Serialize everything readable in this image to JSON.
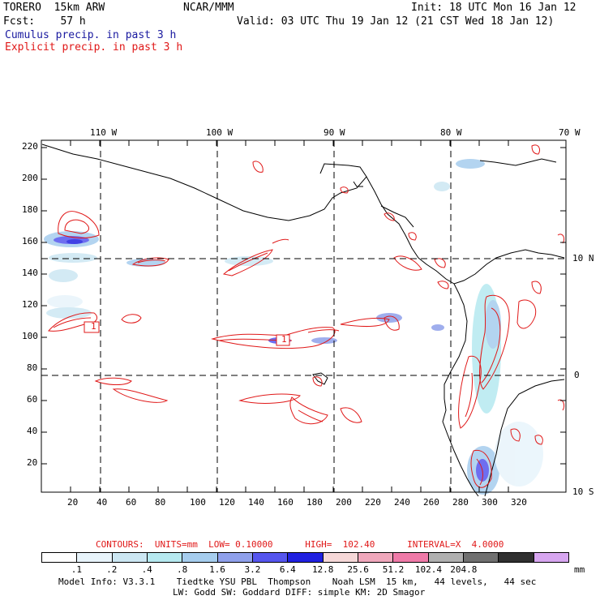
{
  "header": {
    "model": "TORERO  15km ARW",
    "org": "NCAR/MMM",
    "init": "Init: 18 UTC Mon 16 Jan 12",
    "fcst": "Fcst:    57 h",
    "valid": "Valid: 03 UTC Thu 19 Jan 12 (21 CST Wed 18 Jan 12)",
    "field_cumulus": "Cumulus precip. in past 3 h",
    "field_explicit": "Explicit precip. in past 3 h"
  },
  "colors": {
    "cumulus_text": "#1a1aa0",
    "explicit_text": "#e01818",
    "contour": "#e01818",
    "coast": "#000000"
  },
  "map": {
    "lon_labels": [
      "110 W",
      "100 W",
      "90 W",
      "80 W",
      "70 W"
    ],
    "lat_labels": [
      "10 N",
      "0",
      "10 S"
    ],
    "y_ticks": [
      "220",
      "200",
      "180",
      "160",
      "140",
      "120",
      "100",
      "80",
      "60",
      "40",
      "20"
    ],
    "x_ticks": [
      "20",
      "40",
      "60",
      "80",
      "100",
      "120",
      "140",
      "160",
      "180",
      "200",
      "220",
      "240",
      "260",
      "280",
      "300",
      "320"
    ],
    "contour_labels": [
      "1",
      "1"
    ]
  },
  "footer": {
    "contours_info": "CONTOURS:  UNITS=mm  LOW= 0.10000      HIGH=  102.40      INTERVAL=X  4.0000",
    "colorbar": {
      "colors": [
        "#ffffff",
        "#e8f4fb",
        "#cce7f3",
        "#b6e9f0",
        "#a6cdee",
        "#8fa0eb",
        "#5555ee",
        "#2020e0",
        "#f6d8d8",
        "#f0a8bc",
        "#ef7aa8",
        "#b0b0b0",
        "#707070",
        "#303030",
        "#d7a6f0"
      ],
      "labels": [
        ".1",
        ".2",
        ".4",
        ".8",
        "1.6",
        "3.2",
        "6.4",
        "12.8",
        "25.6",
        "51.2",
        "102.4",
        "204.8"
      ],
      "units": "mm"
    },
    "model_info_1": "Model Info: V3.3.1    Tiedtke YSU PBL  Thompson    Noah LSM  15 km,   44 levels,   44 sec",
    "model_info_2": "LW: Godd SW: Goddard DIFF: simple KM: 2D Smagor"
  }
}
